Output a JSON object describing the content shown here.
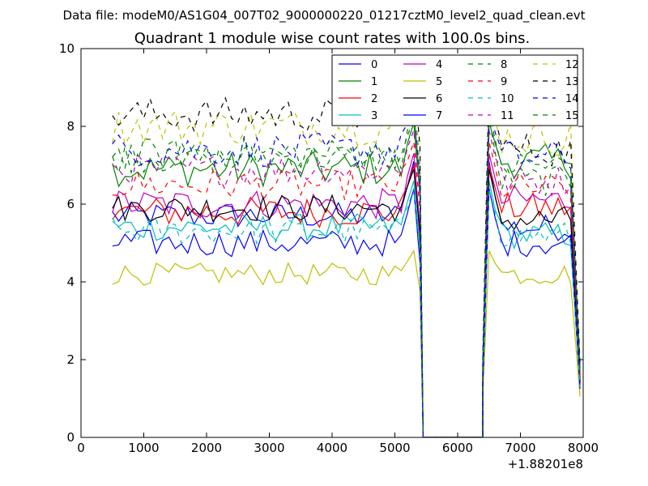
{
  "suptitle": "Data file: modeM0/AS1G04_007T02_9000000220_01217cztM0_level2_quad_clean.evt",
  "chart_data": {
    "type": "line",
    "title": "Quadrant 1 module wise count rates with 100.0s bins.",
    "xlabel": "",
    "ylabel": "",
    "x_offset_label": "+1.88201e8",
    "xlim": [
      0,
      8000
    ],
    "ylim": [
      0,
      10
    ],
    "xticks": [
      0,
      1000,
      2000,
      3000,
      4000,
      5000,
      6000,
      7000,
      8000
    ],
    "yticks": [
      0,
      2,
      4,
      6,
      8,
      10
    ],
    "legend_position": "top-right",
    "segments": [
      {
        "x_start": 500,
        "x_end": 5300,
        "step": 100
      },
      {
        "x_start": 6600,
        "x_end": 7800,
        "step": 100
      }
    ],
    "drop_x": [
      5400,
      5450
    ],
    "gap": {
      "x_start": 5450,
      "x_end": 6400,
      "y": 0
    },
    "rise_x": [
      6400,
      6500
    ],
    "end_x": 7950,
    "series": [
      {
        "name": "0",
        "color": "#0000ff",
        "dash": "solid",
        "base": 5.7,
        "post": 5.4,
        "var": 0.22,
        "peak": 7.1
      },
      {
        "name": "1",
        "color": "#008000",
        "dash": "solid",
        "base": 6.9,
        "post": 7.1,
        "var": 0.28,
        "peak": 8.1
      },
      {
        "name": "2",
        "color": "#ff0000",
        "dash": "solid",
        "base": 5.8,
        "post": 5.9,
        "var": 0.25,
        "peak": 7.0
      },
      {
        "name": "3",
        "color": "#00bfbf",
        "dash": "solid",
        "base": 5.4,
        "post": 5.2,
        "var": 0.22,
        "peak": 6.6
      },
      {
        "name": "4",
        "color": "#bf00bf",
        "dash": "solid",
        "base": 6.0,
        "post": 6.1,
        "var": 0.25,
        "peak": 7.3
      },
      {
        "name": "5",
        "color": "#bfbf00",
        "dash": "solid",
        "base": 4.2,
        "post": 4.2,
        "var": 0.18,
        "peak": 4.8
      },
      {
        "name": "6",
        "color": "#000000",
        "dash": "solid",
        "base": 5.9,
        "post": 5.6,
        "var": 0.22,
        "peak": 6.9
      },
      {
        "name": "7",
        "color": "#0000ff",
        "dash": "solid",
        "base": 5.0,
        "post": 5.0,
        "var": 0.22,
        "peak": 6.4
      },
      {
        "name": "8",
        "color": "#008000",
        "dash": "dashed",
        "base": 7.2,
        "post": 6.6,
        "var": 0.25,
        "peak": 8.2
      },
      {
        "name": "9",
        "color": "#ff0000",
        "dash": "dashed",
        "base": 6.5,
        "post": 6.4,
        "var": 0.25,
        "peak": 7.6
      },
      {
        "name": "10",
        "color": "#00bfbf",
        "dash": "dashed",
        "base": 5.3,
        "post": 5.2,
        "var": 0.22,
        "peak": 6.4
      },
      {
        "name": "11",
        "color": "#bf00bf",
        "dash": "dashed",
        "base": 6.9,
        "post": 6.6,
        "var": 0.25,
        "peak": 7.9
      },
      {
        "name": "12",
        "color": "#bfbf00",
        "dash": "dashed",
        "base": 8.0,
        "post": 7.7,
        "var": 0.3,
        "peak": 8.9
      },
      {
        "name": "13",
        "color": "#000000",
        "dash": "dashed",
        "base": 8.3,
        "post": 7.4,
        "var": 0.28,
        "peak": 9.3
      },
      {
        "name": "14",
        "color": "#0000ff",
        "dash": "dashed",
        "base": 7.4,
        "post": 7.2,
        "var": 0.28,
        "peak": 8.6
      },
      {
        "name": "15",
        "color": "#008000",
        "dash": "dashed",
        "base": 7.3,
        "post": 7.0,
        "var": 0.25,
        "peak": 8.4
      }
    ]
  }
}
